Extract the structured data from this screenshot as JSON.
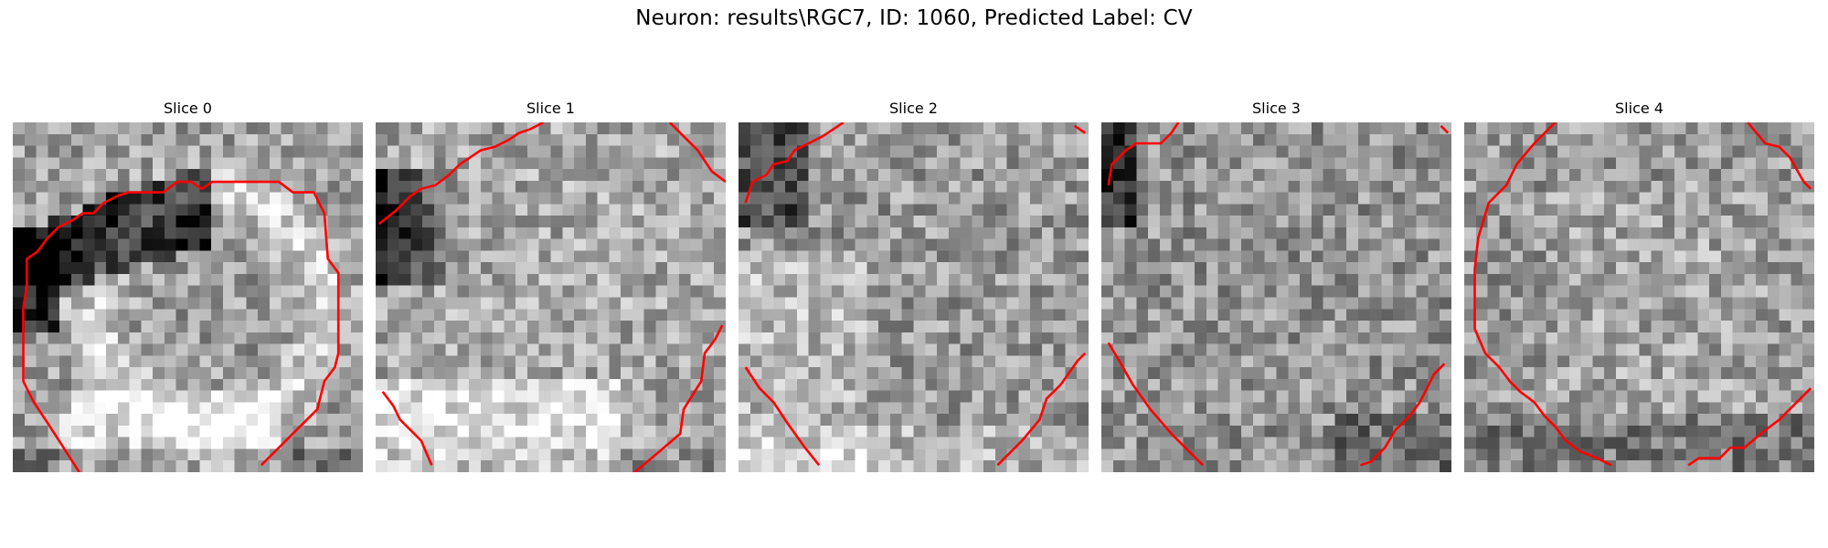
{
  "figure": {
    "title": "Neuron: results\\RGC7, ID: 1060, Predicted Label: CV"
  },
  "panels": [
    {
      "title": "Slice 0"
    },
    {
      "title": "Slice 1"
    },
    {
      "title": "Slice 2"
    },
    {
      "title": "Slice 3"
    },
    {
      "title": "Slice 4"
    }
  ],
  "colors": {
    "contour": "#ff0000",
    "colormap": "gray"
  }
}
